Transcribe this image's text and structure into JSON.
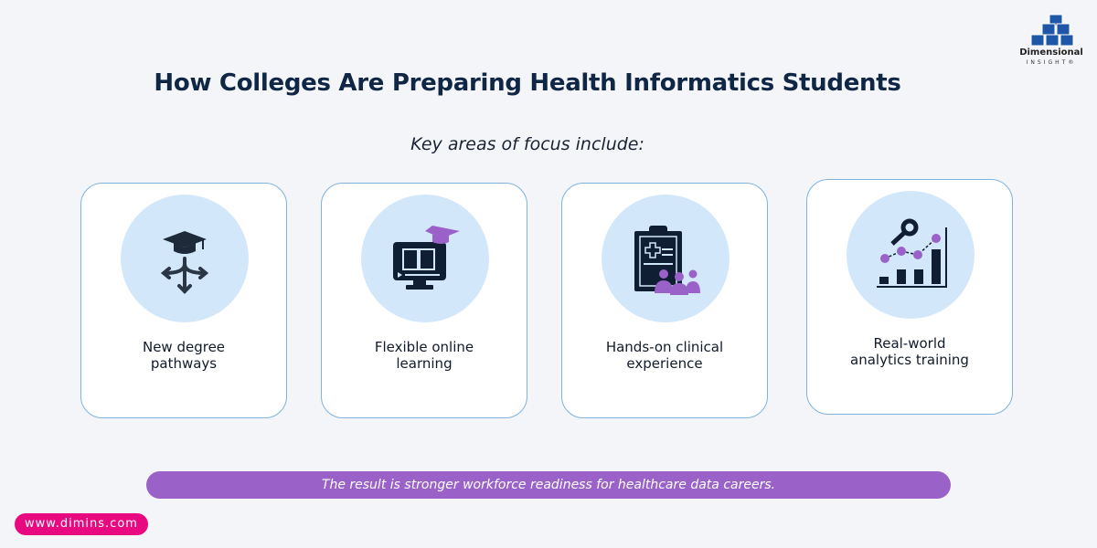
{
  "brand": {
    "name_line1": "Dimensional",
    "name_line2": "INSIGHT®"
  },
  "title": "How Colleges Are Preparing Health Informatics Students",
  "subtitle": "Key areas of focus include:",
  "cards": [
    {
      "label": "New degree pathways",
      "icon": "graduation-cap-branching-arrows-icon"
    },
    {
      "label": "Flexible online learning",
      "icon": "monitor-book-graduation-cap-icon"
    },
    {
      "label": "Hands-on clinical experience",
      "icon": "clipboard-medical-team-icon"
    },
    {
      "label": "Real-world analytics training",
      "icon": "bar-chart-magnifier-icon"
    }
  ],
  "result_text": "The result is stronger workforce readiness for healthcare data careers.",
  "website": "www.dimins.com",
  "colors": {
    "navy": "#0f2745",
    "purple": "#9a62c8",
    "magenta": "#e8087f",
    "circle": "#d3e7fb",
    "brand_blue": "#1f57a8"
  }
}
